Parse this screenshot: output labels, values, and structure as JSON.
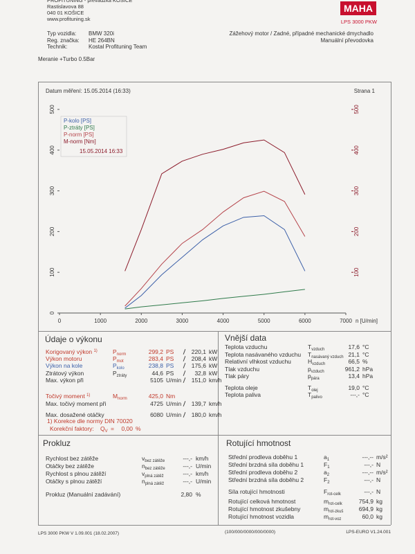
{
  "header": {
    "company": [
      "PROFITUNING - prevádzka KOŠICE",
      "Rastislavova 88",
      "040 01 KOŠICE",
      "www.profituning.sk"
    ],
    "logo": "MAHA",
    "model": "LPS 3000 PKW",
    "vehicle": [
      {
        "label": "Typ vozidla:",
        "value": "BMW 320i"
      },
      {
        "label": "Reg. značka:",
        "value": "HE 264BN"
      },
      {
        "label": "Technik:",
        "value": "Kostal Profituning Team"
      }
    ],
    "description": [
      "Zážehový motor / Zadné, případné mechanické dmychadlo",
      "Manuální převodovka"
    ],
    "note": "Meranie +Turbo 0.5Bar",
    "date": "Datum měření: 15.05.2014 (16:33)",
    "page": "Strana 1"
  },
  "chart": {
    "type": "line",
    "legend_date": "15.05.2014 16:33",
    "x_label": "n [U/min]",
    "xlim": [
      0,
      7000
    ],
    "xticks": [
      0,
      1000,
      2000,
      3000,
      4000,
      5000,
      6000,
      7000
    ],
    "ylim": [
      0,
      500
    ],
    "yticks": [
      0,
      100,
      200,
      300,
      400,
      500
    ],
    "y2lim": [
      0,
      500
    ],
    "y2ticks": [
      100,
      200,
      300,
      400,
      500
    ],
    "x": [
      1600,
      2000,
      2500,
      3000,
      3500,
      4000,
      4500,
      5000,
      5500,
      6000
    ],
    "series": [
      {
        "name": "P-kolo [PS]",
        "color": "#3b5fa8",
        "values": [
          12,
          43,
          94,
          137,
          180,
          214,
          235,
          239,
          205,
          103
        ]
      },
      {
        "name": "P-ztráty [PS]",
        "color": "#2e7a4a",
        "values": [
          10,
          15,
          20,
          25,
          30,
          36,
          41,
          46,
          52,
          58
        ]
      },
      {
        "name": "P-norm [PS]",
        "color": "#b5434a",
        "values": [
          17,
          60,
          120,
          171,
          205,
          248,
          283,
          299,
          274,
          188
        ]
      },
      {
        "name": "M-norm [Nm]",
        "color": "#8b1a2a",
        "axis": "y2",
        "values": [
          103,
          205,
          342,
          373,
          390,
          402,
          418,
          425,
          394,
          291
        ]
      }
    ]
  },
  "performance": {
    "title": "Údaje o výkonu",
    "rows": [
      {
        "label": "Korigovaný výkon",
        "note": "1)",
        "color": "#c0392b",
        "sym": "P",
        "sub": "norm",
        "v1": "299,2",
        "u1": "PS",
        "v2": "220,1",
        "u2": "kW"
      },
      {
        "label": "Výkon motoru",
        "color": "#c0392b",
        "sym": "P",
        "sub": "mot",
        "v1": "283,4",
        "u1": "PS",
        "v2": "208,4",
        "u2": "kW"
      },
      {
        "label": "Výkon na kole",
        "color": "#3b5fa8",
        "sym": "P",
        "sub": "kolo",
        "v1": "238,8",
        "u1": "PS",
        "v2": "175,6",
        "u2": "kW"
      },
      {
        "label": "Ztrátový výkon",
        "color": "#333333",
        "sym": "P",
        "sub": "ztráty",
        "v1": "44,6",
        "u1": "PS",
        "v2": "32,8",
        "u2": "kW"
      },
      {
        "label": "Max. výkon při",
        "color": "#333333",
        "v1": "5105",
        "u1": "U/min",
        "v2": "151,0",
        "u2": "km/h"
      },
      {
        "label": "Točivý moment",
        "note": "1)",
        "color": "#c0392b",
        "sym": "M",
        "sub": "norm",
        "v1": "425,0",
        "u1": "Nm"
      },
      {
        "label": "Max. točivý moment při",
        "color": "#333333",
        "v1": "4725",
        "u1": "U/min",
        "v2": "139,7",
        "u2": "km/h"
      },
      {
        "label": "Max. dosažené otáčky",
        "color": "#333333",
        "v1": "6080",
        "u1": "U/min",
        "v2": "180,0",
        "u2": "km/h"
      }
    ],
    "footnote": "1) Korekce dle normy DIN 70020",
    "factor": {
      "label": "Korekční faktory:",
      "sym": "Q",
      "sub": "V",
      "eq": "=",
      "value": "0,00",
      "unit": "%"
    }
  },
  "external": {
    "title": "Vnější data",
    "rows": [
      {
        "label": "Teplota vzduchu",
        "sym": "T",
        "sub": "vzduch",
        "value": "17,6",
        "unit": "°C"
      },
      {
        "label": "Teplota nasávaného vzduchu",
        "sym": "T",
        "sub": "nasávaný vzduch",
        "value": "21,1",
        "unit": "°C"
      },
      {
        "label": "Relativní vlhkost vzduchu",
        "sym": "H",
        "sub": "vzduch",
        "value": "66,5",
        "unit": "%"
      },
      {
        "label": "Tlak vzduchu",
        "sym": "p",
        "sub": "vzduch",
        "value": "961,2",
        "unit": "hPa"
      },
      {
        "label": "Tlak páry",
        "sym": "p",
        "sub": "pára",
        "value": "13,4",
        "unit": "hPa"
      },
      {
        "label": "Teplota oleje",
        "sym": "T",
        "sub": "olej",
        "value": "19,0",
        "unit": "°C"
      },
      {
        "label": "Teplota paliva",
        "sym": "T",
        "sub": "palivo",
        "value": "---,-",
        "unit": "°C"
      }
    ]
  },
  "slip": {
    "title": "Prokluz",
    "rows": [
      {
        "label": "Rychlost bez zátěže",
        "sym": "v",
        "sub": "bez zátěže",
        "value": "---,-",
        "unit": "km/h"
      },
      {
        "label": "Otáčky bez zátěže",
        "sym": "n",
        "sub": "bez zátěže",
        "value": "---,-",
        "unit": "U/min"
      },
      {
        "label": "Rychlost s plnou zátěží",
        "sym": "v",
        "sub": "plná zátěž",
        "value": "---,-",
        "unit": "km/h"
      },
      {
        "label": "Otáčky s plnou zátěží",
        "sym": "n",
        "sub": "plná zátěž",
        "value": "---,-",
        "unit": "U/min"
      }
    ],
    "manual": {
      "label": "Prokluz (Manuální zadávání)",
      "value": "2,80",
      "unit": "%"
    }
  },
  "rotating": {
    "title": "Rotující hmotnost",
    "rows": [
      {
        "label": "Střední prodleva doběhu 1",
        "sym": "a",
        "sub": "1",
        "value": "---,--",
        "unit": "m/s²"
      },
      {
        "label": "Střední brzdná síla doběhu 1",
        "sym": "F",
        "sub": "1",
        "value": "---,-",
        "unit": "N"
      },
      {
        "label": "Střední prodleva doběhu 2",
        "sym": "a",
        "sub": "2",
        "value": "---,--",
        "unit": "m/s²"
      },
      {
        "label": "Střední brzdná síla doběhu 2",
        "sym": "F",
        "sub": "2",
        "value": "---,-",
        "unit": "N"
      },
      {
        "label": "Síla rotující hmotnosti",
        "sym": "F",
        "sub": "rot-celk",
        "value": "---,-",
        "unit": "N"
      },
      {
        "label": "Rotující celková hmotnost",
        "sym": "m",
        "sub": "rot-celk",
        "value": "754,9",
        "unit": "kg"
      },
      {
        "label": "Rotující hmotnost zkušebny",
        "sym": "m",
        "sub": "rot-zkuš",
        "value": "694,9",
        "unit": "kg"
      },
      {
        "label": "Rotující hmotnost vozidla",
        "sym": "m",
        "sub": "rot-voz",
        "value": "60,0",
        "unit": "kg"
      }
    ]
  },
  "footer": {
    "left": "LPS 3000 PKW V 1.09.001 (18.02.2007)",
    "center": "(100/000/0000/000/0000)",
    "right": "LPS-EURO V1.24.001"
  }
}
